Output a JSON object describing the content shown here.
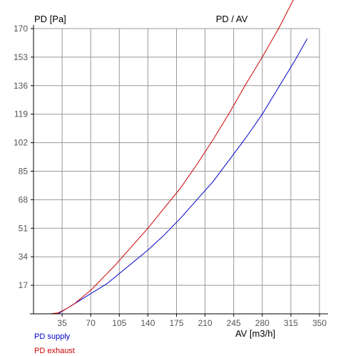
{
  "chart_data": {
    "type": "line",
    "title": "PD / AV",
    "xlabel": "AV [m3/h]",
    "ylabel": "PD [Pa]",
    "xlim": [
      0,
      350
    ],
    "ylim": [
      0,
      170
    ],
    "xticks": [
      35,
      70,
      105,
      140,
      175,
      210,
      245,
      280,
      315,
      350
    ],
    "yticks": [
      17,
      34,
      51,
      68,
      85,
      102,
      119,
      136,
      153,
      170
    ],
    "grid": true,
    "legend_position": "bottom-left",
    "series": [
      {
        "name": "PD supply",
        "color": "#0000cc",
        "x": [
          30,
          40,
          50,
          60,
          70,
          80,
          90,
          100,
          120,
          140,
          160,
          180,
          200,
          220,
          240,
          260,
          280,
          300,
          320,
          335
        ],
        "y": [
          0,
          3,
          6,
          9,
          12,
          15,
          18,
          22,
          30,
          38,
          47,
          57,
          68,
          79,
          92,
          105,
          119,
          135,
          151,
          164
        ]
      },
      {
        "name": "PD exhaust",
        "color": "#cc0000",
        "x": [
          20,
          30,
          40,
          50,
          60,
          70,
          80,
          90,
          100,
          120,
          140,
          160,
          180,
          200,
          220,
          240,
          260,
          280,
          300,
          320
        ],
        "y": [
          0,
          0.5,
          3,
          6,
          10,
          14,
          19,
          24,
          29,
          40,
          51,
          63,
          75,
          89,
          104,
          120,
          137,
          153,
          170,
          189
        ]
      }
    ]
  }
}
